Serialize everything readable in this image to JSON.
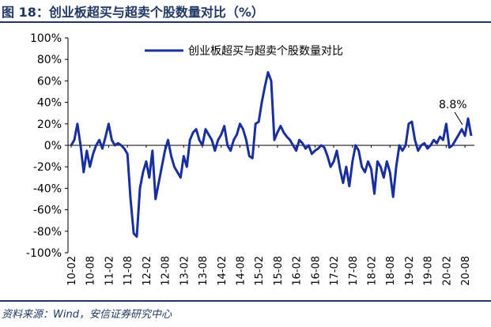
{
  "header": {
    "title": "图 18：创业板超买与超卖个股数量对比（%）"
  },
  "footer": {
    "source": "资料来源：Wind，安信证券研究中心"
  },
  "colors": {
    "brand": "#1f3864",
    "series": "#1a2f9e"
  },
  "chart_data": {
    "type": "line",
    "ylim": [
      -100,
      100
    ],
    "y_ticks": [
      100,
      80,
      60,
      40,
      20,
      0,
      -20,
      -40,
      -60,
      -80,
      -100
    ],
    "y_tick_labels": [
      "100%",
      "80%",
      "60%",
      "40%",
      "20%",
      "0%",
      "-20%",
      "-40%",
      "-60%",
      "-80%",
      "-100%"
    ],
    "x_tick_labels": [
      "10-02",
      "10-08",
      "11-02",
      "11-08",
      "12-02",
      "12-08",
      "13-02",
      "13-08",
      "14-02",
      "14-08",
      "15-02",
      "15-08",
      "16-02",
      "16-08",
      "17-02",
      "17-08",
      "18-02",
      "18-08",
      "19-02",
      "19-08",
      "20-02",
      "20-08"
    ],
    "legend": {
      "position": "top-center"
    },
    "annotation": {
      "text": "8.8%",
      "x": "20-08",
      "y": 8.8
    },
    "series": [
      {
        "name": "创业板超买与超卖个股数量对比",
        "points": [
          [
            "10-02",
            0
          ],
          [
            "10-03",
            5
          ],
          [
            "10-04",
            20
          ],
          [
            "10-05",
            0
          ],
          [
            "10-06",
            -25
          ],
          [
            "10-07",
            -5
          ],
          [
            "10-08",
            -20
          ],
          [
            "10-09",
            -8
          ],
          [
            "10-10",
            0
          ],
          [
            "10-11",
            5
          ],
          [
            "10-12",
            -3
          ],
          [
            "11-01",
            8
          ],
          [
            "11-02",
            20
          ],
          [
            "11-03",
            5
          ],
          [
            "11-04",
            0
          ],
          [
            "11-05",
            2
          ],
          [
            "11-06",
            0
          ],
          [
            "11-07",
            -3
          ],
          [
            "11-08",
            -8
          ],
          [
            "11-09",
            -50
          ],
          [
            "11-10",
            -82
          ],
          [
            "11-11",
            -85
          ],
          [
            "11-12",
            -40
          ],
          [
            "12-01",
            -25
          ],
          [
            "12-02",
            -15
          ],
          [
            "12-03",
            -30
          ],
          [
            "12-04",
            -5
          ],
          [
            "12-05",
            -50
          ],
          [
            "12-06",
            -35
          ],
          [
            "12-07",
            -20
          ],
          [
            "12-08",
            -5
          ],
          [
            "12-09",
            5
          ],
          [
            "12-10",
            -10
          ],
          [
            "12-11",
            -20
          ],
          [
            "12-12",
            -25
          ],
          [
            "13-01",
            -30
          ],
          [
            "13-02",
            -10
          ],
          [
            "13-03",
            -20
          ],
          [
            "13-04",
            5
          ],
          [
            "13-05",
            12
          ],
          [
            "13-06",
            15
          ],
          [
            "13-07",
            5
          ],
          [
            "13-08",
            0
          ],
          [
            "13-09",
            15
          ],
          [
            "13-10",
            10
          ],
          [
            "13-11",
            5
          ],
          [
            "13-12",
            -5
          ],
          [
            "14-01",
            5
          ],
          [
            "14-02",
            10
          ],
          [
            "14-03",
            18
          ],
          [
            "14-04",
            0
          ],
          [
            "14-05",
            -5
          ],
          [
            "14-06",
            5
          ],
          [
            "14-07",
            10
          ],
          [
            "14-08",
            20
          ],
          [
            "14-09",
            15
          ],
          [
            "14-10",
            5
          ],
          [
            "14-11",
            -10
          ],
          [
            "14-12",
            -12
          ],
          [
            "15-01",
            20
          ],
          [
            "15-02",
            22
          ],
          [
            "15-03",
            40
          ],
          [
            "15-04",
            55
          ],
          [
            "15-05",
            68
          ],
          [
            "15-06",
            60
          ],
          [
            "15-07",
            5
          ],
          [
            "15-08",
            12
          ],
          [
            "15-09",
            18
          ],
          [
            "15-10",
            12
          ],
          [
            "15-11",
            8
          ],
          [
            "15-12",
            5
          ],
          [
            "16-01",
            0
          ],
          [
            "16-02",
            -5
          ],
          [
            "16-03",
            5
          ],
          [
            "16-04",
            2
          ],
          [
            "16-05",
            -3
          ],
          [
            "16-06",
            0
          ],
          [
            "16-07",
            -8
          ],
          [
            "16-08",
            -5
          ],
          [
            "16-09",
            -3
          ],
          [
            "16-10",
            0
          ],
          [
            "16-11",
            -2
          ],
          [
            "16-12",
            -10
          ],
          [
            "17-01",
            -20
          ],
          [
            "17-02",
            -15
          ],
          [
            "17-03",
            -5
          ],
          [
            "17-04",
            -22
          ],
          [
            "17-05",
            -35
          ],
          [
            "17-06",
            -20
          ],
          [
            "17-07",
            -38
          ],
          [
            "17-08",
            -15
          ],
          [
            "17-09",
            0
          ],
          [
            "17-10",
            -5
          ],
          [
            "17-11",
            -20
          ],
          [
            "17-12",
            -25
          ],
          [
            "18-01",
            -15
          ],
          [
            "18-02",
            -22
          ],
          [
            "18-03",
            -45
          ],
          [
            "18-04",
            -15
          ],
          [
            "18-05",
            -20
          ],
          [
            "18-06",
            -30
          ],
          [
            "18-07",
            -15
          ],
          [
            "18-08",
            -25
          ],
          [
            "18-09",
            -48
          ],
          [
            "18-10",
            -20
          ],
          [
            "18-11",
            0
          ],
          [
            "18-12",
            -5
          ],
          [
            "19-01",
            0
          ],
          [
            "19-02",
            20
          ],
          [
            "19-03",
            22
          ],
          [
            "19-04",
            5
          ],
          [
            "19-05",
            -5
          ],
          [
            "19-06",
            0
          ],
          [
            "19-07",
            2
          ],
          [
            "19-08",
            -3
          ],
          [
            "19-09",
            0
          ],
          [
            "19-10",
            5
          ],
          [
            "19-11",
            2
          ],
          [
            "19-12",
            8
          ],
          [
            "20-01",
            5
          ],
          [
            "20-02",
            20
          ],
          [
            "20-03",
            -2
          ],
          [
            "20-04",
            0
          ],
          [
            "20-05",
            5
          ],
          [
            "20-06",
            10
          ],
          [
            "20-07",
            15
          ],
          [
            "20-08",
            8.8
          ],
          [
            "20-09",
            25
          ],
          [
            "20-10",
            8.8
          ]
        ]
      }
    ]
  }
}
